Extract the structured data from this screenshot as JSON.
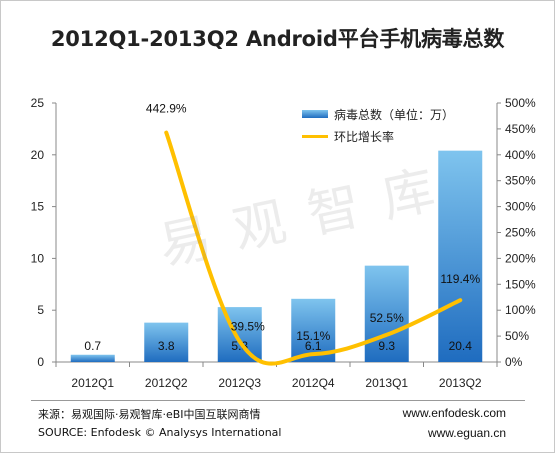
{
  "title": "2012Q1-2013Q2  Android平台手机病毒总数",
  "watermark": "易观智库",
  "legend": {
    "bar_label": "病毒总数（单位：万）",
    "line_label": "环比增长率"
  },
  "footer": {
    "source_cn": "来源：易观国际·易观智库·eBI中国互联网商情",
    "source_en": "SOURCE: Enfodesk © Analysys International",
    "site1": "www.enfodesk.com",
    "site2": "www.eguan.cn"
  },
  "colors": {
    "bar_top": "#7fc4ee",
    "bar_bottom": "#1f6cbf",
    "line": "#ffc000",
    "axis": "#888888"
  },
  "chart_data": {
    "type": "bar",
    "categories": [
      "2012Q1",
      "2012Q2",
      "2012Q3",
      "2012Q4",
      "2013Q1",
      "2013Q2"
    ],
    "series": [
      {
        "name": "病毒总数（单位：万）",
        "type": "bar",
        "axis": "left",
        "values": [
          0.7,
          3.8,
          5.3,
          6.1,
          9.3,
          20.4
        ],
        "labels": [
          "0.7",
          "3.8",
          "5.3",
          "6.1",
          "9.3",
          "20.4"
        ]
      },
      {
        "name": "环比增长率",
        "type": "line",
        "axis": "right",
        "values": [
          null,
          442.9,
          39.5,
          15.1,
          52.5,
          119.4
        ],
        "labels": [
          null,
          "442.9%",
          "39.5%",
          "15.1%",
          "52.5%",
          "119.4%"
        ]
      }
    ],
    "y_left": {
      "min": 0,
      "max": 25,
      "ticks": [
        "0",
        "5",
        "10",
        "15",
        "20",
        "25"
      ]
    },
    "y_right": {
      "min": 0,
      "max": 500,
      "ticks": [
        "0%",
        "50%",
        "100%",
        "150%",
        "200%",
        "250%",
        "300%",
        "350%",
        "400%",
        "450%",
        "500%"
      ]
    },
    "grid": false,
    "legend_position": "top-right"
  }
}
